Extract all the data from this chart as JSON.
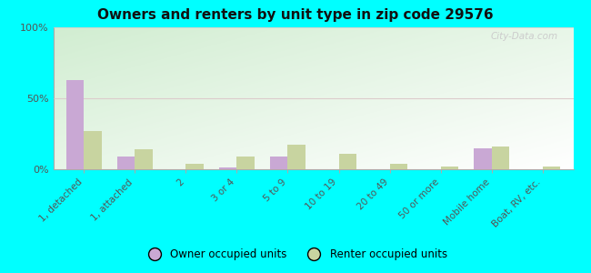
{
  "title": "Owners and renters by unit type in zip code 29576",
  "categories": [
    "1, detached",
    "1, attached",
    "2",
    "3 or 4",
    "5 to 9",
    "10 to 19",
    "20 to 49",
    "50 or more",
    "Mobile home",
    "Boat, RV, etc."
  ],
  "owner_values": [
    63,
    9,
    0,
    1,
    9,
    0,
    0,
    0,
    15,
    0
  ],
  "renter_values": [
    27,
    14,
    4,
    9,
    17,
    11,
    4,
    2,
    16,
    2
  ],
  "owner_color": "#c9a8d4",
  "renter_color": "#c8d4a0",
  "background_color": "#00ffff",
  "plot_bg_topleft": "#d0e8c8",
  "plot_bg_bottomright": "#f5fff5",
  "ylabel_ticks": [
    "0%",
    "50%",
    "100%"
  ],
  "ytick_vals": [
    0,
    50,
    100
  ],
  "watermark": "City-Data.com",
  "legend_owner": "Owner occupied units",
  "legend_renter": "Renter occupied units",
  "bar_width": 0.35
}
